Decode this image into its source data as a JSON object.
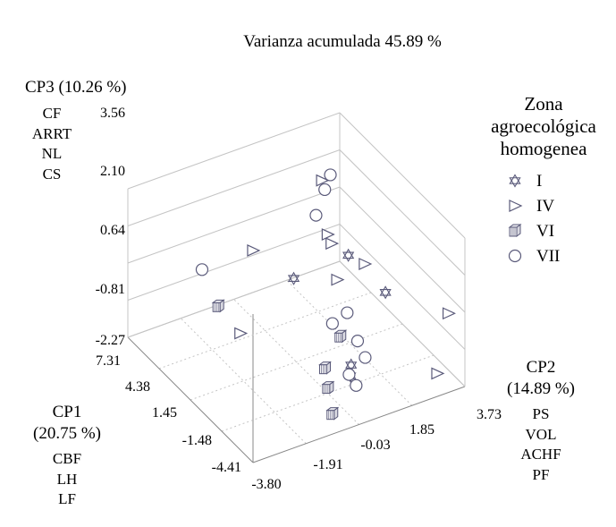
{
  "chart_data": {
    "type": "scatter",
    "title": "Varianza acumulada 45.89 %",
    "axes": {
      "z": {
        "label": "CP3 (10.26 %)",
        "variables": [
          "CF",
          "ARRT",
          "NL",
          "CS"
        ],
        "ticks": [
          "3.56",
          "2.10",
          "0.64",
          "-0.81",
          "-2.27"
        ],
        "range": [
          -2.27,
          3.56
        ]
      },
      "x": {
        "label_line1": "CP1",
        "label_line2": "(20.75 %)",
        "variables": [
          "CBF",
          "LH",
          "LF"
        ],
        "ticks": [
          "7.31",
          "4.38",
          "1.45",
          "-1.48",
          "-4.41"
        ],
        "range": [
          -4.41,
          7.31
        ]
      },
      "y": {
        "label_line1": "CP2",
        "label_line2": "(14.89 %)",
        "variables": [
          "PS",
          "VOL",
          "ACHF",
          "PF"
        ],
        "ticks": [
          "-3.80",
          "-1.91",
          "-0.03",
          "1.85",
          "3.73"
        ],
        "range": [
          -3.8,
          3.73
        ]
      }
    },
    "legend": {
      "title_lines": [
        "Zona",
        "agroecológica",
        "homogenea"
      ],
      "placement": "right",
      "entries": [
        {
          "label": "I",
          "marker": "star"
        },
        {
          "label": "IV",
          "marker": "triangle-right"
        },
        {
          "label": "VI",
          "marker": "cube"
        },
        {
          "label": "VII",
          "marker": "circle"
        }
      ]
    },
    "series": [
      {
        "name": "I",
        "marker": "star",
        "points": [
          {
            "x": -2.0,
            "y": 0.6,
            "z": -1.2
          },
          {
            "x": -2.2,
            "y": 0.5,
            "z": -1.5
          },
          {
            "x": 1.0,
            "y": -0.3,
            "z": 1.3
          },
          {
            "x": 3.0,
            "y": 2.4,
            "z": 0.3
          },
          {
            "x": -1.0,
            "y": 2.2,
            "z": 0.6
          }
        ]
      },
      {
        "name": "IV",
        "marker": "triangle-right",
        "points": [
          {
            "x": 0.6,
            "y": -1.9,
            "z": 3.2
          },
          {
            "x": 3.0,
            "y": 1.8,
            "z": 1.0
          },
          {
            "x": 6.0,
            "y": 2.6,
            "z": 1.9
          },
          {
            "x": 6.0,
            "y": 2.8,
            "z": -0.3
          },
          {
            "x": 2.0,
            "y": 2.6,
            "z": 0.3
          },
          {
            "x": 3.0,
            "y": 2.0,
            "z": -0.5
          },
          {
            "x": 1.0,
            "y": -2.2,
            "z": -0.1
          },
          {
            "x": -4.0,
            "y": 2.9,
            "z": -1.6
          },
          {
            "x": -4.0,
            "y": 3.3,
            "z": 0.6
          }
        ]
      },
      {
        "name": "VI",
        "marker": "cube",
        "points": [
          {
            "x": 2.0,
            "y": -2.6,
            "z": 0.7
          },
          {
            "x": -1.0,
            "y": 0.6,
            "z": -0.5
          },
          {
            "x": -1.4,
            "y": -0.1,
            "z": -1.3
          },
          {
            "x": -3.0,
            "y": -0.6,
            "z": -1.2
          },
          {
            "x": -4.2,
            "y": -0.9,
            "z": -1.6
          }
        ]
      },
      {
        "name": "VII",
        "marker": "circle",
        "points": [
          {
            "x": 3.0,
            "y": -2.8,
            "z": 1.8
          },
          {
            "x": 6.0,
            "y": 2.9,
            "z": 2.0
          },
          {
            "x": 6.0,
            "y": 2.7,
            "z": 1.5
          },
          {
            "x": 5.5,
            "y": 2.2,
            "z": 0.9
          },
          {
            "x": 1.0,
            "y": 1.6,
            "z": -0.8
          },
          {
            "x": 0.8,
            "y": 1.0,
            "z": -0.9
          },
          {
            "x": -0.5,
            "y": 1.4,
            "z": -1.2
          },
          {
            "x": -2.0,
            "y": 1.1,
            "z": -1.1
          },
          {
            "x": -2.6,
            "y": 0.3,
            "z": -1.2
          },
          {
            "x": -3.0,
            "y": 0.4,
            "z": -1.5
          }
        ]
      }
    ],
    "grid": true
  }
}
